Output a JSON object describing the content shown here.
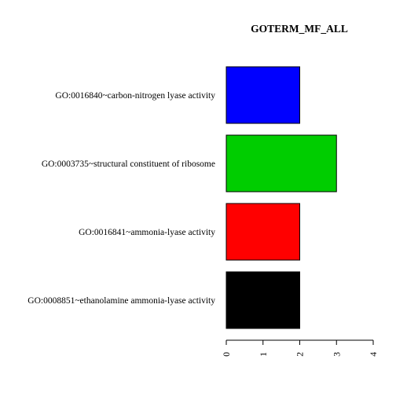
{
  "chart_data": {
    "type": "bar",
    "orientation": "horizontal",
    "title": "GOTERM_MF_ALL",
    "xlabel": "",
    "ylabel": "",
    "categories": [
      "GO:0016840~carbon-nitrogen lyase activity",
      "GO:0003735~structural constituent of ribosome",
      "GO:0016841~ammonia-lyase activity",
      "GO:0008851~ethanolamine ammonia-lyase activity"
    ],
    "values": [
      2,
      3,
      2,
      2
    ],
    "bar_colors": [
      "#0000ff",
      "#00cd00",
      "#ff0000",
      "#000000"
    ],
    "xlim": [
      0,
      4
    ],
    "x_ticks": [
      "0",
      "1",
      "2",
      "3",
      "4"
    ],
    "grid": false,
    "legend": "none"
  }
}
